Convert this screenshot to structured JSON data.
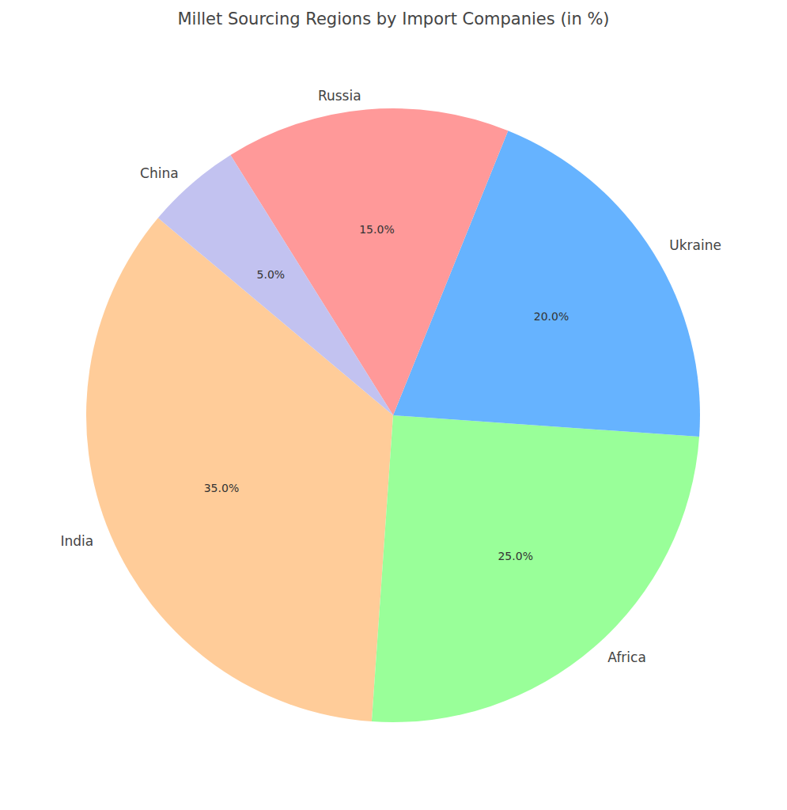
{
  "chart_data": {
    "type": "pie",
    "title": "Millet Sourcing Regions by Import Companies (in %)",
    "categories": [
      "India",
      "Africa",
      "Ukraine",
      "Russia",
      "China"
    ],
    "values": [
      35,
      25,
      20,
      15,
      5
    ],
    "value_labels": [
      "35.0%",
      "25.0%",
      "20.0%",
      "15.0%",
      "5.0%"
    ],
    "colors": [
      "#ffcc99",
      "#99ff99",
      "#66b3ff",
      "#ff9999",
      "#c2c2f0"
    ],
    "data_labels": true
  }
}
